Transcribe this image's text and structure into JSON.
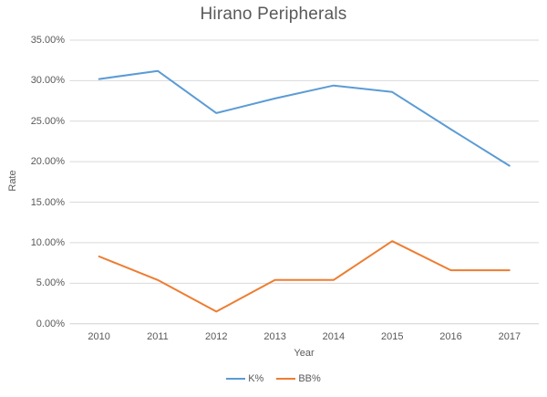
{
  "chart_data": {
    "type": "line",
    "title": "Hirano Peripherals",
    "xlabel": "Year",
    "ylabel": "Rate",
    "categories": [
      "2010",
      "2011",
      "2012",
      "2013",
      "2014",
      "2015",
      "2016",
      "2017"
    ],
    "series": [
      {
        "name": "K%",
        "color": "#5B9BD5",
        "values": [
          30.2,
          31.2,
          26.0,
          27.8,
          29.4,
          28.6,
          24.0,
          19.5
        ]
      },
      {
        "name": "BB%",
        "color": "#ED7D31",
        "values": [
          8.3,
          5.4,
          1.5,
          5.4,
          5.4,
          10.2,
          6.6,
          6.6
        ]
      }
    ],
    "ylim": [
      0,
      35
    ],
    "ytick_step": 5,
    "ytick_labels": [
      "0.00%",
      "5.00%",
      "10.00%",
      "15.00%",
      "20.00%",
      "25.00%",
      "30.00%",
      "35.00%"
    ],
    "grid": true,
    "legend_position": "bottom"
  },
  "colors": {
    "title_text": "#595959",
    "axis_text": "#595959",
    "gridline": "#D9D9D9",
    "axis_line": "#D0D0D0",
    "background": "#FFFFFF"
  }
}
